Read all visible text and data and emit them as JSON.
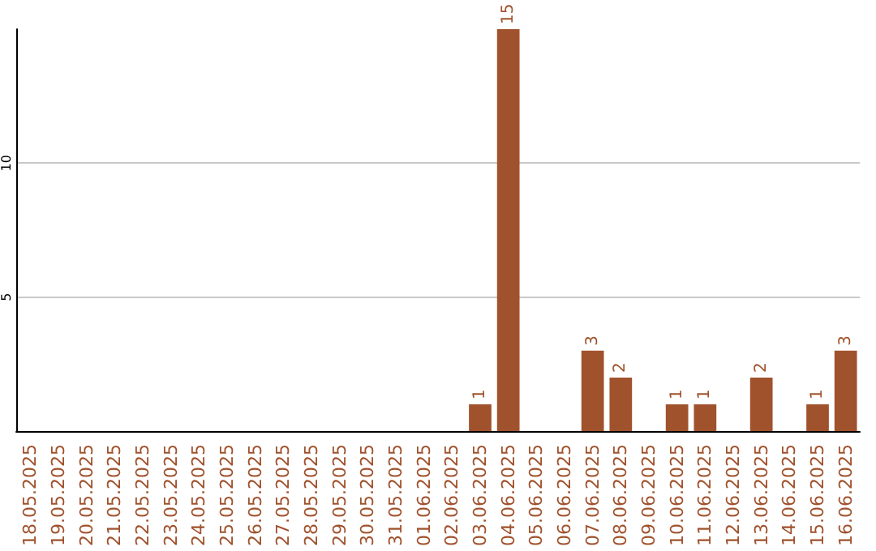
{
  "chart_data": {
    "type": "bar",
    "categories": [
      "18.05.2025",
      "19.05.2025",
      "20.05.2025",
      "21.05.2025",
      "22.05.2025",
      "23.05.2025",
      "24.05.2025",
      "25.05.2025",
      "26.05.2025",
      "27.05.2025",
      "28.05.2025",
      "29.05.2025",
      "30.05.2025",
      "31.05.2025",
      "01.06.2025",
      "02.06.2025",
      "03.06.2025",
      "04.06.2025",
      "05.06.2025",
      "06.06.2025",
      "07.06.2025",
      "08.06.2025",
      "09.06.2025",
      "10.06.2025",
      "11.06.2025",
      "12.06.2025",
      "13.06.2025",
      "14.06.2025",
      "15.06.2025",
      "16.06.2025"
    ],
    "values": [
      0,
      0,
      0,
      0,
      0,
      0,
      0,
      0,
      0,
      0,
      0,
      0,
      0,
      0,
      0,
      0,
      1,
      15,
      0,
      0,
      3,
      2,
      0,
      1,
      1,
      0,
      2,
      0,
      1,
      3
    ],
    "value_labels": [
      null,
      null,
      null,
      null,
      null,
      null,
      null,
      null,
      null,
      null,
      null,
      null,
      null,
      null,
      null,
      null,
      "1",
      "15",
      null,
      null,
      "3",
      "2",
      null,
      "1",
      "1",
      null,
      "2",
      null,
      "1",
      "3"
    ],
    "color": "#a0522d",
    "ylim": [
      0,
      15
    ],
    "yticks": [
      5,
      10
    ],
    "grid": "y"
  }
}
